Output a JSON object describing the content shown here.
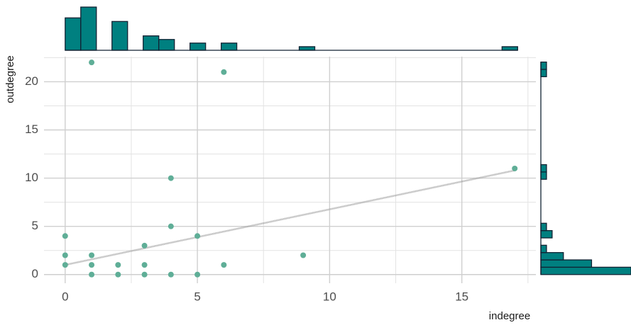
{
  "chart_data": {
    "type": "scatter",
    "x_label": "indegree",
    "y_label": "outdegree",
    "x": [
      1,
      6,
      17,
      4,
      0,
      4,
      3,
      5,
      0,
      1,
      9,
      0,
      1,
      2,
      3,
      6,
      1,
      2,
      3,
      4,
      5
    ],
    "y": [
      22,
      21,
      11,
      10,
      4,
      5,
      3,
      4,
      2,
      2,
      2,
      1,
      1,
      1,
      1,
      1,
      0,
      0,
      0,
      0,
      0
    ],
    "color": "#5fae97",
    "trend": {
      "x": [
        0,
        17
      ],
      "y": [
        1.0,
        10.8
      ],
      "color": "#999999"
    },
    "xlim": [
      -0.8,
      17.8
    ],
    "ylim": [
      -0.9,
      22.6
    ],
    "xticks": [
      0,
      5,
      10,
      15
    ],
    "yticks": [
      0,
      5,
      10,
      15,
      20
    ],
    "minor_xticks": [
      2.5,
      7.5,
      12.5,
      17.5
    ],
    "minor_yticks": [
      2.5,
      7.5,
      12.5,
      17.5,
      22.5
    ],
    "grid": true,
    "x_hist": {
      "color": "#008080",
      "bins": [
        0,
        0.59,
        1.18,
        1.77,
        2.36,
        2.95,
        3.54,
        4.13,
        4.72,
        5.31,
        5.9,
        6.49,
        7.08,
        7.67,
        8.26,
        8.85,
        9.44,
        10.03,
        10.62,
        11.21,
        11.8,
        12.39,
        12.98,
        13.57,
        14.16,
        14.75,
        15.34,
        15.93,
        16.52,
        17.11
      ],
      "counts": [
        9,
        12,
        0,
        8,
        0,
        4,
        3,
        0,
        2,
        0,
        2,
        0,
        0,
        0,
        0,
        1,
        0,
        0,
        0,
        0,
        0,
        0,
        0,
        0,
        0,
        0,
        0,
        0,
        1
      ]
    },
    "y_hist": {
      "color": "#008080",
      "bins": [
        0,
        0.76,
        1.52,
        2.28,
        3.04,
        3.8,
        4.56,
        5.32,
        6.08,
        6.84,
        7.6,
        8.36,
        9.12,
        9.88,
        10.64,
        11.4,
        12.16,
        12.92,
        13.68,
        14.44,
        15.2,
        15.96,
        16.72,
        17.48,
        18.24,
        19,
        19.76,
        20.52,
        21.28,
        22.04
      ],
      "counts": [
        16,
        9,
        4,
        1,
        0,
        2,
        1,
        0,
        0,
        0,
        0,
        0,
        0,
        1,
        1,
        0,
        0,
        0,
        0,
        0,
        0,
        0,
        0,
        0,
        0,
        0,
        0,
        1,
        1
      ]
    }
  }
}
